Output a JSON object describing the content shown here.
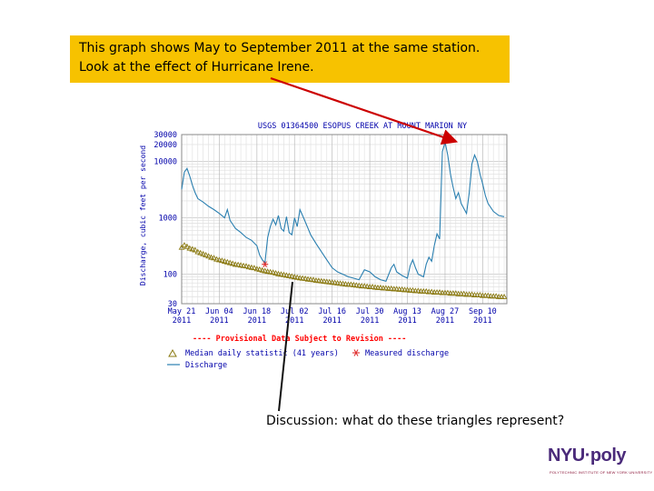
{
  "slide": {
    "callout": {
      "line1": "This graph shows May to September 2011 at the same station.",
      "line2": "Look at the effect of Hurricane Irene."
    },
    "discussion": "Discussion:  what do these triangles represent?",
    "logo": {
      "text": "NYU·poly",
      "subtitle": "POLYTECHNIC INSTITUTE OF NEW YORK UNIVERSITY"
    },
    "colors": {
      "callout_bg": "#f7c200",
      "arrow": "#cc0000",
      "discharge": "#2a7fb0",
      "median": "#8b7a12",
      "measured": "#e03030",
      "revision": "#ff0000",
      "title": "#0000aa"
    }
  },
  "chart_data": {
    "type": "line",
    "title": "USGS 01364500 ESOPUS CREEK AT MOUNT MARION NY",
    "ylabel": "Discharge, cubic feet per second",
    "y_scale": "log",
    "ylim": [
      30,
      30000
    ],
    "yticks": [
      "30000",
      "20000",
      "10000",
      "1000",
      "100",
      "30"
    ],
    "ytick_values": [
      30000,
      20000,
      10000,
      1000,
      100,
      30
    ],
    "xlim_day": [
      0,
      121
    ],
    "x_ticks": [
      {
        "day": 0,
        "line1": "May 21",
        "line2": "2011"
      },
      {
        "day": 14,
        "line1": "Jun 04",
        "line2": "2011"
      },
      {
        "day": 28,
        "line1": "Jun 18",
        "line2": "2011"
      },
      {
        "day": 42,
        "line1": "Jul 02",
        "line2": "2011"
      },
      {
        "day": 56,
        "line1": "Jul 16",
        "line2": "2011"
      },
      {
        "day": 70,
        "line1": "Jul 30",
        "line2": "2011"
      },
      {
        "day": 84,
        "line1": "Aug 13",
        "line2": "2011"
      },
      {
        "day": 98,
        "line1": "Aug 27",
        "line2": "2011"
      },
      {
        "day": 112,
        "line1": "Sep 10",
        "line2": "2011"
      }
    ],
    "revision_note": "---- Provisional Data Subject to Revision ----",
    "legend": {
      "median": "Median daily statistic (41 years)",
      "measured": "Measured discharge",
      "discharge": "Discharge"
    },
    "series": [
      {
        "name": "Discharge",
        "kind": "line",
        "points": [
          [
            0,
            3200
          ],
          [
            1,
            6500
          ],
          [
            2,
            7500
          ],
          [
            3,
            5500
          ],
          [
            4,
            3800
          ],
          [
            5,
            2800
          ],
          [
            6,
            2200
          ],
          [
            8,
            1900
          ],
          [
            10,
            1600
          ],
          [
            12,
            1400
          ],
          [
            14,
            1200
          ],
          [
            16,
            1000
          ],
          [
            17,
            1400
          ],
          [
            18,
            900
          ],
          [
            20,
            650
          ],
          [
            22,
            550
          ],
          [
            24,
            450
          ],
          [
            26,
            400
          ],
          [
            28,
            320
          ],
          [
            29,
            220
          ],
          [
            30,
            180
          ],
          [
            31,
            160
          ],
          [
            32,
            450
          ],
          [
            33,
            700
          ],
          [
            34,
            950
          ],
          [
            35,
            750
          ],
          [
            36,
            1100
          ],
          [
            37,
            650
          ],
          [
            38,
            580
          ],
          [
            39,
            1050
          ],
          [
            40,
            550
          ],
          [
            41,
            500
          ],
          [
            42,
            1000
          ],
          [
            43,
            700
          ],
          [
            44,
            1400
          ],
          [
            45,
            1100
          ],
          [
            46,
            850
          ],
          [
            47,
            650
          ],
          [
            48,
            500
          ],
          [
            50,
            350
          ],
          [
            52,
            250
          ],
          [
            54,
            180
          ],
          [
            56,
            130
          ],
          [
            58,
            110
          ],
          [
            60,
            100
          ],
          [
            62,
            90
          ],
          [
            64,
            85
          ],
          [
            66,
            80
          ],
          [
            68,
            120
          ],
          [
            70,
            110
          ],
          [
            72,
            90
          ],
          [
            74,
            80
          ],
          [
            76,
            75
          ],
          [
            78,
            130
          ],
          [
            79,
            150
          ],
          [
            80,
            110
          ],
          [
            82,
            95
          ],
          [
            84,
            85
          ],
          [
            85,
            140
          ],
          [
            86,
            180
          ],
          [
            87,
            130
          ],
          [
            88,
            100
          ],
          [
            90,
            90
          ],
          [
            91,
            150
          ],
          [
            92,
            200
          ],
          [
            93,
            170
          ],
          [
            94,
            320
          ],
          [
            95,
            520
          ],
          [
            96,
            420
          ],
          [
            97,
            15000
          ],
          [
            98,
            22000
          ],
          [
            99,
            13000
          ],
          [
            100,
            6000
          ],
          [
            101,
            3500
          ],
          [
            102,
            2200
          ],
          [
            103,
            2800
          ],
          [
            104,
            1800
          ],
          [
            106,
            1200
          ],
          [
            107,
            2800
          ],
          [
            108,
            9000
          ],
          [
            109,
            13000
          ],
          [
            110,
            10000
          ],
          [
            111,
            6000
          ],
          [
            112,
            4000
          ],
          [
            113,
            2500
          ],
          [
            114,
            1800
          ],
          [
            116,
            1300
          ],
          [
            118,
            1100
          ],
          [
            120,
            1050
          ]
        ]
      },
      {
        "name": "Median daily statistic (41 years)",
        "kind": "triangles",
        "points": [
          [
            0,
            300
          ],
          [
            1,
            330
          ],
          [
            2,
            310
          ],
          [
            3,
            290
          ],
          [
            4,
            280
          ],
          [
            5,
            270
          ],
          [
            6,
            250
          ],
          [
            7,
            240
          ],
          [
            8,
            230
          ],
          [
            9,
            220
          ],
          [
            10,
            210
          ],
          [
            11,
            200
          ],
          [
            12,
            195
          ],
          [
            13,
            185
          ],
          [
            14,
            180
          ],
          [
            15,
            175
          ],
          [
            16,
            170
          ],
          [
            17,
            165
          ],
          [
            18,
            160
          ],
          [
            19,
            155
          ],
          [
            20,
            150
          ],
          [
            21,
            148
          ],
          [
            22,
            145
          ],
          [
            23,
            142
          ],
          [
            24,
            140
          ],
          [
            25,
            135
          ],
          [
            26,
            132
          ],
          [
            27,
            130
          ],
          [
            28,
            125
          ],
          [
            29,
            122
          ],
          [
            30,
            118
          ],
          [
            31,
            115
          ],
          [
            32,
            112
          ],
          [
            33,
            110
          ],
          [
            34,
            108
          ],
          [
            35,
            105
          ],
          [
            36,
            102
          ],
          [
            37,
            100
          ],
          [
            38,
            98
          ],
          [
            39,
            96
          ],
          [
            40,
            94
          ],
          [
            41,
            92
          ],
          [
            42,
            90
          ],
          [
            43,
            88
          ],
          [
            44,
            86
          ],
          [
            45,
            85
          ],
          [
            46,
            84
          ],
          [
            47,
            82
          ],
          [
            48,
            81
          ],
          [
            49,
            80
          ],
          [
            50,
            78
          ],
          [
            51,
            77
          ],
          [
            52,
            76
          ],
          [
            53,
            75
          ],
          [
            54,
            74
          ],
          [
            55,
            73
          ],
          [
            56,
            72
          ],
          [
            57,
            71
          ],
          [
            58,
            70
          ],
          [
            59,
            69
          ],
          [
            60,
            68
          ],
          [
            61,
            67
          ],
          [
            62,
            66
          ],
          [
            63,
            66
          ],
          [
            64,
            65
          ],
          [
            65,
            64
          ],
          [
            66,
            63
          ],
          [
            67,
            62
          ],
          [
            68,
            62
          ],
          [
            69,
            61
          ],
          [
            70,
            60
          ],
          [
            71,
            60
          ],
          [
            72,
            59
          ],
          [
            73,
            58
          ],
          [
            74,
            58
          ],
          [
            75,
            57
          ],
          [
            76,
            57
          ],
          [
            77,
            56
          ],
          [
            78,
            56
          ],
          [
            79,
            55
          ],
          [
            80,
            55
          ],
          [
            81,
            54
          ],
          [
            82,
            54
          ],
          [
            83,
            53
          ],
          [
            84,
            53
          ],
          [
            85,
            52
          ],
          [
            86,
            52
          ],
          [
            87,
            51
          ],
          [
            88,
            51
          ],
          [
            89,
            50
          ],
          [
            90,
            50
          ],
          [
            91,
            50
          ],
          [
            92,
            49
          ],
          [
            93,
            49
          ],
          [
            94,
            48
          ],
          [
            95,
            48
          ],
          [
            96,
            48
          ],
          [
            97,
            47
          ],
          [
            98,
            47
          ],
          [
            99,
            47
          ],
          [
            100,
            46
          ],
          [
            101,
            46
          ],
          [
            102,
            46
          ],
          [
            103,
            45
          ],
          [
            104,
            45
          ],
          [
            105,
            45
          ],
          [
            106,
            44
          ],
          [
            107,
            44
          ],
          [
            108,
            44
          ],
          [
            109,
            43
          ],
          [
            110,
            43
          ],
          [
            111,
            43
          ],
          [
            112,
            42
          ],
          [
            113,
            42
          ],
          [
            114,
            42
          ],
          [
            115,
            41
          ],
          [
            116,
            41
          ],
          [
            117,
            41
          ],
          [
            118,
            40
          ],
          [
            119,
            40
          ],
          [
            120,
            40
          ]
        ]
      },
      {
        "name": "Measured discharge",
        "kind": "star",
        "points": [
          [
            31,
            150
          ]
        ]
      }
    ]
  }
}
